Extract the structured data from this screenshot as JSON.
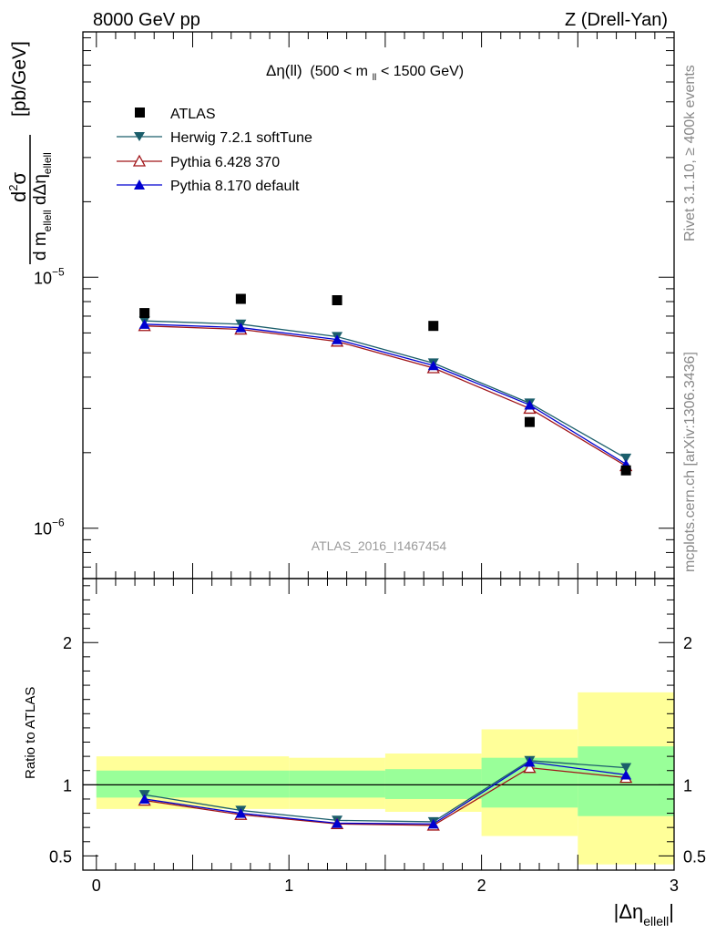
{
  "header": {
    "energy": "8000 GeV pp",
    "process": "Z (Drell-Yan)",
    "side_rivet": "Rivet 3.1.10, ≥ 400k events",
    "side_site": "mcplots.cern.ch [arXiv:1306.3436]",
    "watermark": "ATLAS_2016_I1467454"
  },
  "chart_data": {
    "type": "scatter",
    "title_main": "Δη(ll)",
    "title_cut": "(500 < m",
    "title_cut_sub": "ll",
    "title_cut_end": " < 1500 GeV)",
    "ylabel_num": "d²σ",
    "ylabel_den": "d m_ellell dΔη_ellell",
    "ylabel_units": "[pb/GeV]",
    "xlabel": "|Δη",
    "xlabel_sub": "ellell",
    "xlabel_end": "|",
    "ratio_ylabel": "Ratio to ATLAS",
    "x_range": [
      -0.07,
      3.0
    ],
    "y_range_log": [
      6.3e-07,
      9.5e-05
    ],
    "ratio_range": [
      0.4,
      2.45
    ],
    "x_ticks": [
      "0",
      "1",
      "2",
      "3"
    ],
    "x_tick_values": [
      0,
      1,
      2,
      3
    ],
    "main_y_tick_labels": [
      {
        "value": 1e-05,
        "base": "10",
        "exp": "−5"
      },
      {
        "value": 1e-06,
        "base": "10",
        "exp": "−6"
      }
    ],
    "ratio_y_ticks": [
      {
        "value": 0.5,
        "label": "0.5"
      },
      {
        "value": 1,
        "label": "1"
      },
      {
        "value": 2,
        "label": "2"
      }
    ],
    "x": [
      0.25,
      0.75,
      1.25,
      1.75,
      2.25,
      2.75
    ],
    "bin_edges": [
      0,
      0.5,
      1.0,
      1.5,
      2.0,
      2.5,
      3.0
    ],
    "atlas": [
      7.2e-06,
      8.2e-06,
      8.1e-06,
      6.4e-06,
      2.65e-06,
      1.7e-06
    ],
    "series": [
      {
        "name": "Herwig 7.2.1 softTune",
        "color": "#1b5e6b",
        "marker": "tri-down-filled",
        "values": [
          6.7e-06,
          6.5e-06,
          5.8e-06,
          4.55e-06,
          3.15e-06,
          1.9e-06
        ],
        "ratio": [
          0.93,
          0.82,
          0.75,
          0.74,
          1.17,
          1.12
        ]
      },
      {
        "name": "Pythia 6.428 370",
        "color": "#a01418",
        "marker": "tri-up-open",
        "values": [
          6.4e-06,
          6.2e-06,
          5.55e-06,
          4.35e-06,
          3e-06,
          1.77e-06
        ],
        "ratio": [
          0.89,
          0.79,
          0.725,
          0.715,
          1.12,
          1.05
        ]
      },
      {
        "name": "Pythia 8.170 default",
        "color": "#0000d0",
        "marker": "tri-up-filled",
        "values": [
          6.5e-06,
          6.3e-06,
          5.65e-06,
          4.45e-06,
          3.1e-06,
          1.8e-06
        ],
        "ratio": [
          0.9,
          0.8,
          0.73,
          0.725,
          1.16,
          1.07
        ]
      }
    ],
    "legend_atlas": "ATLAS",
    "band_green": [
      [
        0.91,
        1.1
      ],
      [
        0.91,
        1.1
      ],
      [
        0.91,
        1.1
      ],
      [
        0.9,
        1.11
      ],
      [
        0.84,
        1.19
      ],
      [
        0.78,
        1.27
      ]
    ],
    "band_yellow": [
      [
        0.83,
        1.2
      ],
      [
        0.83,
        1.2
      ],
      [
        0.83,
        1.19
      ],
      [
        0.81,
        1.22
      ],
      [
        0.64,
        1.39
      ],
      [
        0.44,
        1.65
      ]
    ],
    "colors": {
      "green": "#99ff99",
      "yellow": "#ffff99",
      "atlas": "#000000"
    }
  }
}
